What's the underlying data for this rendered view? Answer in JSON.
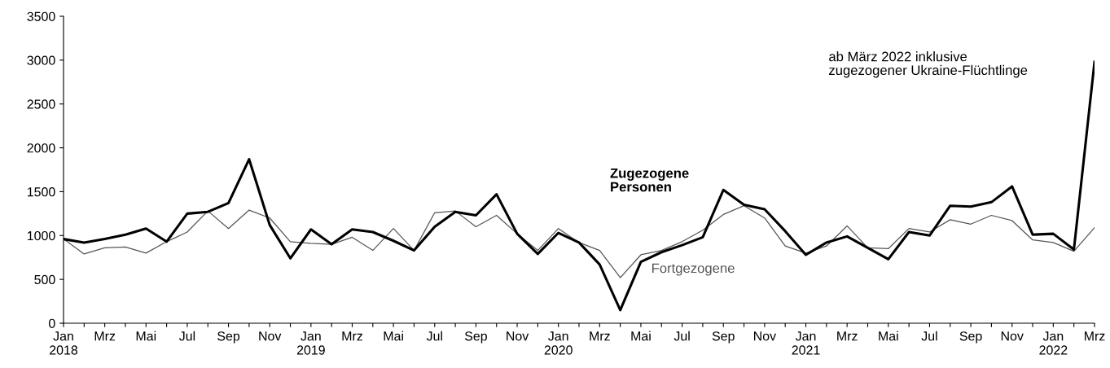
{
  "chart_data": {
    "type": "line",
    "x": [
      "2018-01",
      "2018-02",
      "2018-03",
      "2018-04",
      "2018-05",
      "2018-06",
      "2018-07",
      "2018-08",
      "2018-09",
      "2018-10",
      "2018-11",
      "2018-12",
      "2019-01",
      "2019-02",
      "2019-03",
      "2019-04",
      "2019-05",
      "2019-06",
      "2019-07",
      "2019-08",
      "2019-09",
      "2019-10",
      "2019-11",
      "2019-12",
      "2020-01",
      "2020-02",
      "2020-03",
      "2020-04",
      "2020-05",
      "2020-06",
      "2020-07",
      "2020-08",
      "2020-09",
      "2020-10",
      "2020-11",
      "2020-12",
      "2021-01",
      "2021-02",
      "2021-03",
      "2021-04",
      "2021-05",
      "2021-06",
      "2021-07",
      "2021-08",
      "2021-09",
      "2021-10",
      "2021-11",
      "2021-12",
      "2022-01",
      "2022-02",
      "2022-03"
    ],
    "series": [
      {
        "name": "Fortgezogene",
        "color": "#555555",
        "line_style": "solid",
        "values": [
          960,
          790,
          860,
          870,
          800,
          930,
          1040,
          1280,
          1080,
          1290,
          1200,
          930,
          910,
          900,
          980,
          830,
          1080,
          830,
          1260,
          1280,
          1100,
          1230,
          1020,
          830,
          1080,
          920,
          830,
          520,
          780,
          830,
          930,
          1060,
          1240,
          1340,
          1200,
          880,
          800,
          880,
          1110,
          860,
          850,
          1080,
          1040,
          1180,
          1130,
          1230,
          1170,
          950,
          920,
          820,
          1090
        ]
      },
      {
        "name": "Zugezogene Personen",
        "color": "#000000",
        "line_style": "solid",
        "values": [
          960,
          920,
          960,
          1010,
          1080,
          930,
          1250,
          1270,
          1370,
          1870,
          1120,
          740,
          1070,
          900,
          1070,
          1040,
          940,
          830,
          1100,
          1270,
          1230,
          1470,
          1020,
          790,
          1030,
          920,
          670,
          150,
          700,
          810,
          890,
          980,
          1520,
          1350,
          1300,
          1050,
          780,
          920,
          990,
          860,
          730,
          1040,
          1000,
          1340,
          1330,
          1380,
          1560,
          1010,
          1020,
          840,
          2980
        ]
      }
    ],
    "annotations": [
      "ab März 2022 inklusive\nzugezogener Ukraine-Flüchtlinge"
    ],
    "xlim": [
      "2018-01",
      "2022-03"
    ],
    "xticks": [
      {
        "value": "2018-01",
        "label": "Jan\n2018"
      },
      {
        "value": "2018-02",
        "label": null
      },
      {
        "value": "2018-03",
        "label": "Mrz"
      },
      {
        "value": "2018-04",
        "label": null
      },
      {
        "value": "2018-05",
        "label": "Mai"
      },
      {
        "value": "2018-06",
        "label": null
      },
      {
        "value": "2018-07",
        "label": "Jul"
      },
      {
        "value": "2018-08",
        "label": null
      },
      {
        "value": "2018-09",
        "label": "Sep"
      },
      {
        "value": "2018-10",
        "label": null
      },
      {
        "value": "2018-11",
        "label": "Nov"
      },
      {
        "value": "2018-12",
        "label": null
      },
      {
        "value": "2019-01",
        "label": "Jan\n2019"
      },
      {
        "value": "2019-02",
        "label": null
      },
      {
        "value": "2019-03",
        "label": "Mrz"
      },
      {
        "value": "2019-04",
        "label": null
      },
      {
        "value": "2019-05",
        "label": "Mai"
      },
      {
        "value": "2019-06",
        "label": null
      },
      {
        "value": "2019-07",
        "label": "Jul"
      },
      {
        "value": "2019-08",
        "label": null
      },
      {
        "value": "2019-09",
        "label": "Sep"
      },
      {
        "value": "2019-10",
        "label": null
      },
      {
        "value": "2019-11",
        "label": "Nov"
      },
      {
        "value": "2019-12",
        "label": null
      },
      {
        "value": "2020-01",
        "label": "Jan\n2020"
      },
      {
        "value": "2020-02",
        "label": null
      },
      {
        "value": "2020-03",
        "label": "Mrz"
      },
      {
        "value": "2020-04",
        "label": null
      },
      {
        "value": "2020-05",
        "label": "Mai"
      },
      {
        "value": "2020-06",
        "label": null
      },
      {
        "value": "2020-07",
        "label": "Jul"
      },
      {
        "value": "2020-08",
        "label": null
      },
      {
        "value": "2020-09",
        "label": "Sep"
      },
      {
        "value": "2020-10",
        "label": null
      },
      {
        "value": "2020-11",
        "label": "Nov"
      },
      {
        "value": "2020-12",
        "label": null
      },
      {
        "value": "2021-01",
        "label": "Jan\n2021"
      },
      {
        "value": "2021-02",
        "label": null
      },
      {
        "value": "2021-03",
        "label": "Mrz"
      },
      {
        "value": "2021-04",
        "label": null
      },
      {
        "value": "2021-05",
        "label": "Mai"
      },
      {
        "value": "2021-06",
        "label": null
      },
      {
        "value": "2021-07",
        "label": "Jul"
      },
      {
        "value": "2021-08",
        "label": null
      },
      {
        "value": "2021-09",
        "label": "Sep"
      },
      {
        "value": "2021-10",
        "label": null
      },
      {
        "value": "2021-11",
        "label": "Nov"
      },
      {
        "value": "2021-12",
        "label": null
      },
      {
        "value": "2022-01",
        "label": "Jan\n2022"
      },
      {
        "value": "2022-02",
        "label": null
      },
      {
        "value": "2022-03",
        "label": "Mrz"
      }
    ],
    "ylim": [
      0,
      3500
    ],
    "yticks": [
      0,
      500,
      1000,
      1500,
      2000,
      2500,
      3000,
      3500
    ],
    "grid": false,
    "legend": false,
    "marker": "none"
  }
}
